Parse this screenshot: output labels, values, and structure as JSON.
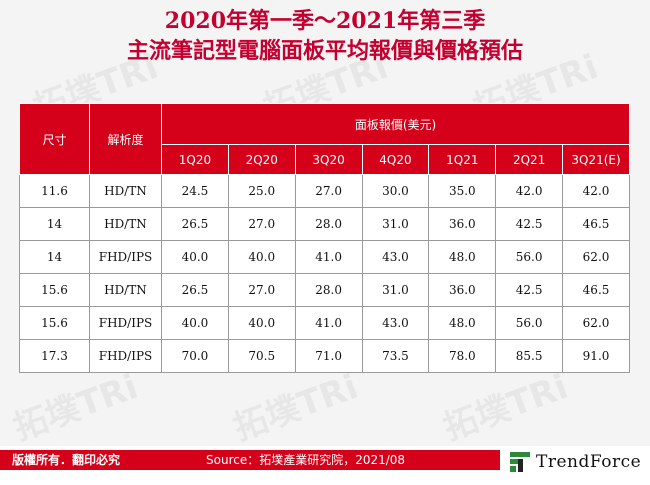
{
  "title": {
    "line1": "2020年第一季～2021年第三季",
    "line2": "主流筆記型電腦面板平均報價與價格預估"
  },
  "watermark": "拓墣TRi",
  "table": {
    "col_size": "尺寸",
    "col_resolution": "解析度",
    "price_group": "面板報價(美元)",
    "quarters": [
      "1Q20",
      "2Q20",
      "3Q20",
      "4Q20",
      "1Q21",
      "2Q21",
      "3Q21(E)"
    ],
    "rows": [
      {
        "size": "11.6",
        "res": "HD/TN",
        "v": [
          "24.5",
          "25.0",
          "27.0",
          "30.0",
          "35.0",
          "42.0",
          "42.0"
        ]
      },
      {
        "size": "14",
        "res": "HD/TN",
        "v": [
          "26.5",
          "27.0",
          "28.0",
          "31.0",
          "36.0",
          "42.5",
          "46.5"
        ]
      },
      {
        "size": "14",
        "res": "FHD/IPS",
        "v": [
          "40.0",
          "40.0",
          "41.0",
          "43.0",
          "48.0",
          "56.0",
          "62.0"
        ]
      },
      {
        "size": "15.6",
        "res": "HD/TN",
        "v": [
          "26.5",
          "27.0",
          "28.0",
          "31.0",
          "36.0",
          "42.5",
          "46.5"
        ]
      },
      {
        "size": "15.6",
        "res": "FHD/IPS",
        "v": [
          "40.0",
          "40.0",
          "41.0",
          "43.0",
          "48.0",
          "56.0",
          "62.0"
        ]
      },
      {
        "size": "17.3",
        "res": "FHD/IPS",
        "v": [
          "70.0",
          "70.5",
          "71.0",
          "73.5",
          "78.0",
          "85.5",
          "91.0"
        ]
      }
    ]
  },
  "footer": {
    "copyright": "版權所有．翻印必究",
    "source": "Source：拓墣產業研究院，2021/08",
    "logo": "TrendForce",
    "brand_color": "#d50019"
  }
}
